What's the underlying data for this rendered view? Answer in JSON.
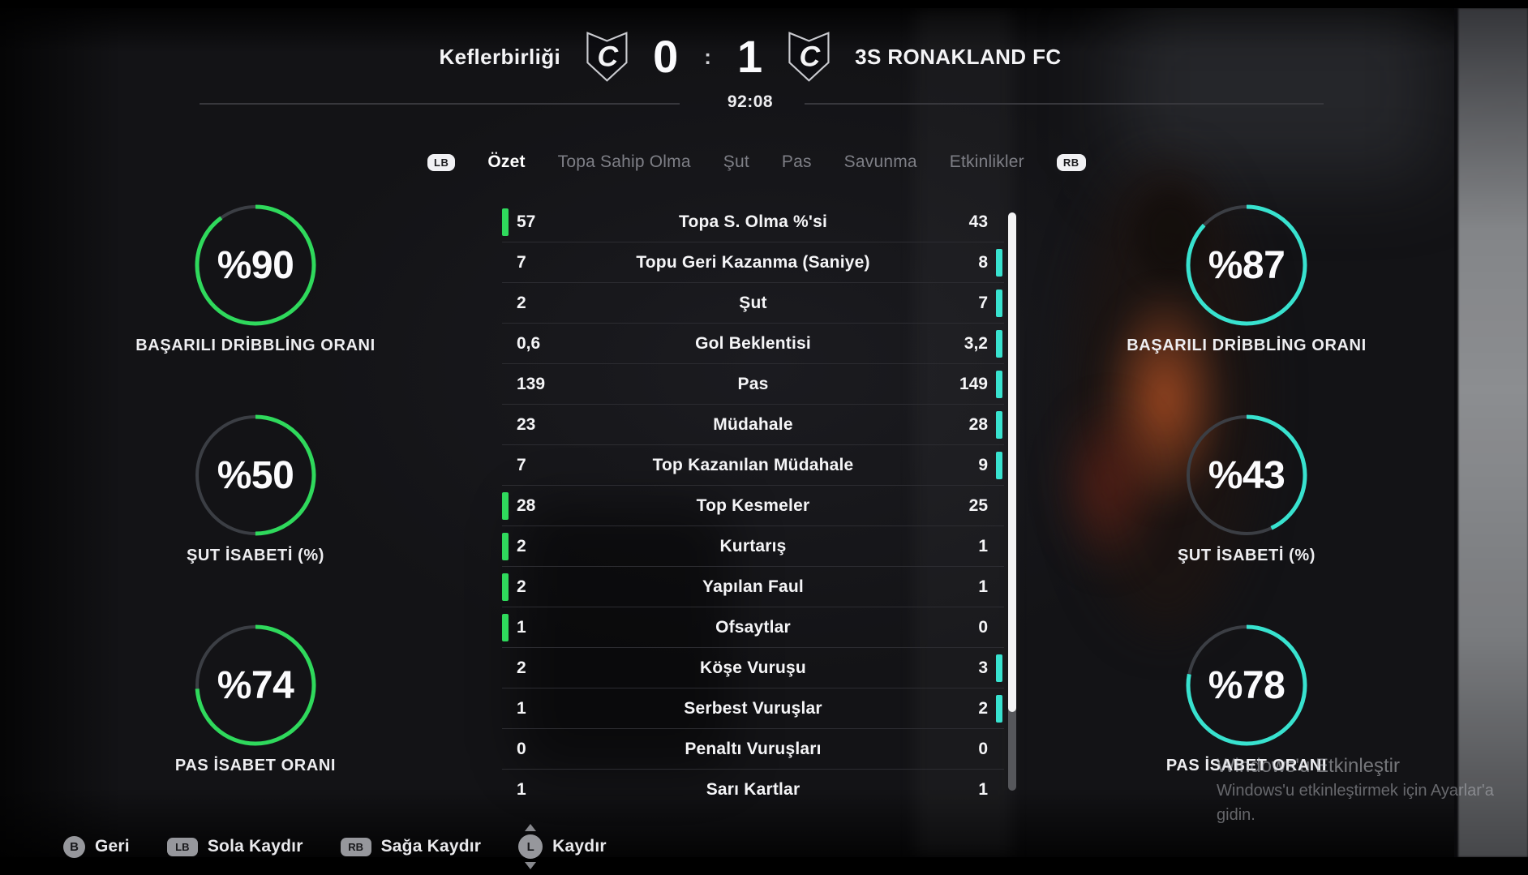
{
  "scoreboard": {
    "home_team": "Keflerbirliği",
    "away_team": "3S RONAKLAND FC",
    "home_score": "0",
    "separator": ":",
    "away_score": "1",
    "match_time": "92:08",
    "logo_letter": "C"
  },
  "tabs": {
    "lb_label": "LB",
    "rb_label": "RB",
    "items": [
      {
        "label": "Özet",
        "active": true
      },
      {
        "label": "Topa Sahip Olma",
        "active": false
      },
      {
        "label": "Şut",
        "active": false
      },
      {
        "label": "Pas",
        "active": false
      },
      {
        "label": "Savunma",
        "active": false
      },
      {
        "label": "Etkinlikler",
        "active": false
      }
    ]
  },
  "gauges": {
    "home": [
      {
        "value": "%90",
        "percent": 90,
        "label": "BAŞARILI DRİBBLİNG ORANI"
      },
      {
        "value": "%50",
        "percent": 50,
        "label": "ŞUT İSABETİ (%)"
      },
      {
        "value": "%74",
        "percent": 74,
        "label": "PAS İSABET ORANI"
      }
    ],
    "away": [
      {
        "value": "%87",
        "percent": 87,
        "label": "BAŞARILI DRİBBLİNG ORANI"
      },
      {
        "value": "%43",
        "percent": 43,
        "label": "ŞUT İSABETİ (%)"
      },
      {
        "value": "%78",
        "percent": 78,
        "label": "PAS İSABET ORANI"
      }
    ]
  },
  "stats_table": {
    "rows": [
      {
        "home": "57",
        "label": "Topa S. Olma %'si",
        "away": "43",
        "highlight": "home"
      },
      {
        "home": "7",
        "label": "Topu Geri Kazanma (Saniye)",
        "away": "8",
        "highlight": "away"
      },
      {
        "home": "2",
        "label": "Şut",
        "away": "7",
        "highlight": "away"
      },
      {
        "home": "0,6",
        "label": "Gol Beklentisi",
        "away": "3,2",
        "highlight": "away"
      },
      {
        "home": "139",
        "label": "Pas",
        "away": "149",
        "highlight": "away"
      },
      {
        "home": "23",
        "label": "Müdahale",
        "away": "28",
        "highlight": "away"
      },
      {
        "home": "7",
        "label": "Top Kazanılan Müdahale",
        "away": "9",
        "highlight": "away"
      },
      {
        "home": "28",
        "label": "Top Kesmeler",
        "away": "25",
        "highlight": "home"
      },
      {
        "home": "2",
        "label": "Kurtarış",
        "away": "1",
        "highlight": "home"
      },
      {
        "home": "2",
        "label": "Yapılan Faul",
        "away": "1",
        "highlight": "home"
      },
      {
        "home": "1",
        "label": "Ofsaytlar",
        "away": "0",
        "highlight": "home"
      },
      {
        "home": "2",
        "label": "Köşe Vuruşu",
        "away": "3",
        "highlight": "away"
      },
      {
        "home": "1",
        "label": "Serbest Vuruşlar",
        "away": "2",
        "highlight": "away"
      },
      {
        "home": "0",
        "label": "Penaltı Vuruşları",
        "away": "0",
        "highlight": "none"
      },
      {
        "home": "1",
        "label": "Sarı Kartlar",
        "away": "1",
        "highlight": "none"
      }
    ]
  },
  "controls": [
    {
      "button": "B",
      "shape": "circle",
      "label": "Geri"
    },
    {
      "button": "LB",
      "shape": "rect",
      "label": "Sola Kaydır"
    },
    {
      "button": "RB",
      "shape": "rect",
      "label": "Sağa Kaydır"
    },
    {
      "button": "L",
      "shape": "stick",
      "label": "Kaydır"
    }
  ],
  "watermark": {
    "line1": "Windows'u Etkinleştir",
    "line2": "Windows'u etkinleştirmek için Ayarlar'a gidin."
  },
  "colors": {
    "home_accent": "#2fd95c",
    "away_accent": "#38e2cf",
    "gauge_track": "#3b3e44"
  }
}
